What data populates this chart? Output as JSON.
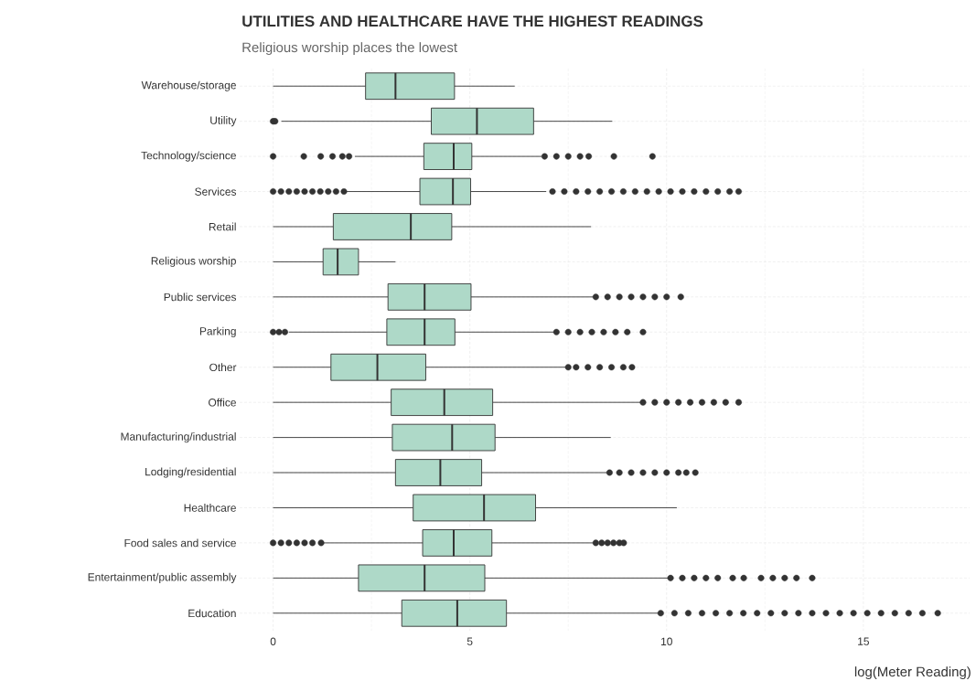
{
  "chart_data": {
    "type": "box",
    "orientation": "horizontal",
    "title": "UTILITIES AND HEALTHCARE HAVE THE HIGHEST READINGS",
    "subtitle": "Religious worship places the lowest",
    "xlabel": "log(Meter Reading)",
    "categories": [
      "Warehouse/storage",
      "Utility",
      "Technology/science",
      "Services",
      "Retail",
      "Religious worship",
      "Public services",
      "Parking",
      "Other",
      "Office",
      "Manufacturing/industrial",
      "Lodging/residential",
      "Healthcare",
      "Food sales and service",
      "Entertainment/public assembly",
      "Education"
    ],
    "color": "#aed9c8",
    "boxes": [
      {
        "low": 0,
        "q1": 2.35,
        "median": 3.11,
        "q3": 4.61,
        "high": 6.14
      },
      {
        "low": 0.21,
        "q1": 4.02,
        "median": 5.18,
        "q3": 6.62,
        "high": 8.62,
        "outliers": [
          0,
          0.05
        ]
      },
      {
        "low": 2.08,
        "q1": 3.83,
        "median": 4.59,
        "q3": 5.05,
        "high": 6.82,
        "outliers": [
          0,
          0.78,
          1.21,
          1.51,
          1.76,
          1.93,
          6.9,
          7.2,
          7.5,
          7.8,
          8.02,
          8.66,
          9.64
        ]
      },
      {
        "low": 1.84,
        "q1": 3.73,
        "median": 4.57,
        "q3": 5.02,
        "high": 6.94,
        "outliers": [
          0,
          0.2,
          0.4,
          0.6,
          0.8,
          1.0,
          1.2,
          1.4,
          1.6,
          1.8,
          7.1,
          7.4,
          7.7,
          8.0,
          8.3,
          8.6,
          8.9,
          9.2,
          9.5,
          9.8,
          10.1,
          10.4,
          10.7,
          11.0,
          11.3,
          11.6,
          11.83
        ]
      },
      {
        "low": 0,
        "q1": 1.53,
        "median": 3.5,
        "q3": 4.54,
        "high": 8.08
      },
      {
        "low": 0,
        "q1": 1.27,
        "median": 1.64,
        "q3": 2.17,
        "high": 3.11
      },
      {
        "low": 0,
        "q1": 2.92,
        "median": 3.85,
        "q3": 5.03,
        "high": 8.14,
        "outliers": [
          8.2,
          8.5,
          8.8,
          9.1,
          9.4,
          9.7,
          10.0,
          10.36
        ]
      },
      {
        "low": 0.4,
        "q1": 2.89,
        "median": 3.85,
        "q3": 4.62,
        "high": 7.15,
        "outliers": [
          0,
          0.15,
          0.3,
          7.2,
          7.5,
          7.8,
          8.1,
          8.4,
          8.7,
          9.0,
          9.4
        ]
      },
      {
        "low": 0,
        "q1": 1.47,
        "median": 2.65,
        "q3": 3.88,
        "high": 7.44,
        "outliers": [
          7.5,
          7.7,
          8.0,
          8.3,
          8.6,
          8.9,
          9.12
        ]
      },
      {
        "low": 0,
        "q1": 3.0,
        "median": 4.35,
        "q3": 5.58,
        "high": 9.35,
        "outliers": [
          9.4,
          9.7,
          10.0,
          10.3,
          10.6,
          10.9,
          11.2,
          11.5,
          11.83
        ]
      },
      {
        "low": 0,
        "q1": 3.03,
        "median": 4.55,
        "q3": 5.64,
        "high": 8.58
      },
      {
        "low": 0,
        "q1": 3.11,
        "median": 4.25,
        "q3": 5.3,
        "high": 8.5,
        "outliers": [
          8.55,
          8.8,
          9.1,
          9.4,
          9.7,
          10.0,
          10.3,
          10.5,
          10.73
        ]
      },
      {
        "low": 0,
        "q1": 3.56,
        "median": 5.36,
        "q3": 6.67,
        "high": 10.26
      },
      {
        "low": 1.25,
        "q1": 3.8,
        "median": 4.59,
        "q3": 5.56,
        "high": 8.14,
        "outliers": [
          0,
          0.2,
          0.4,
          0.6,
          0.8,
          1.0,
          1.22,
          8.2,
          8.35,
          8.5,
          8.65,
          8.8,
          8.91
        ]
      },
      {
        "low": 0,
        "q1": 2.17,
        "median": 3.85,
        "q3": 5.38,
        "high": 10.09,
        "outliers": [
          10.1,
          10.4,
          10.7,
          11.0,
          11.3,
          11.68,
          11.96,
          12.4,
          12.7,
          13.0,
          13.3,
          13.7
        ]
      },
      {
        "low": 0,
        "q1": 3.27,
        "median": 4.68,
        "q3": 5.93,
        "high": 9.82,
        "outliers": [
          9.85,
          10.2,
          10.55,
          10.9,
          11.25,
          11.6,
          11.95,
          12.3,
          12.65,
          13.0,
          13.35,
          13.7,
          14.05,
          14.4,
          14.75,
          15.1,
          15.45,
          15.8,
          16.15,
          16.5,
          16.89
        ]
      }
    ],
    "xlim": [
      -0.85,
      17.7
    ],
    "xticks": [
      0,
      5,
      10,
      15
    ],
    "grid": true
  }
}
